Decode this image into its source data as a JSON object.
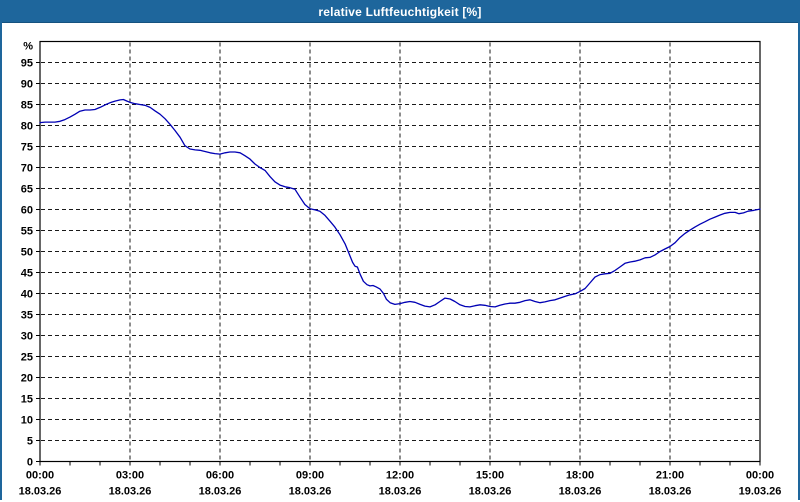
{
  "window": {
    "title": "relative Luftfeuchtigkeit [%]"
  },
  "colors": {
    "titlebar_bg": "#1e669c",
    "titlebar_text": "#ffffff",
    "frame": "#1e669c",
    "background": "#ffffff",
    "line": "#0000b4",
    "grid": "#1a1a1a",
    "axis": "#000000",
    "text": "#000000"
  },
  "chart_data": {
    "type": "line",
    "title": "relative Luftfeuchtigkeit [%]",
    "y_unit_label": "%",
    "ylim": [
      0,
      100
    ],
    "ytick_step": 5,
    "ytick_label_min": 0,
    "ytick_label_max": 95,
    "grid": "dashed; horizontal every 5%, vertical every 3h",
    "legend_position": "none",
    "x_hours_range": [
      0,
      24
    ],
    "x_minor_tick_hours": 1,
    "x_major_tick_hours": 3,
    "xticks": [
      {
        "hour": 0,
        "time": "00:00",
        "date": "18.03.26"
      },
      {
        "hour": 3,
        "time": "03:00",
        "date": "18.03.26"
      },
      {
        "hour": 6,
        "time": "06:00",
        "date": "18.03.26"
      },
      {
        "hour": 9,
        "time": "09:00",
        "date": "18.03.26"
      },
      {
        "hour": 12,
        "time": "12:00",
        "date": "18.03.26"
      },
      {
        "hour": 15,
        "time": "15:00",
        "date": "18.03.26"
      },
      {
        "hour": 18,
        "time": "18:00",
        "date": "18.03.26"
      },
      {
        "hour": 21,
        "time": "21:00",
        "date": "18.03.26"
      },
      {
        "hour": 24,
        "time": "00:00",
        "date": "19.03.26"
      }
    ],
    "series": [
      {
        "name": "relative Luftfeuchtigkeit [%]",
        "color": "#0000b4",
        "points": [
          [
            0,
            80.7
          ],
          [
            0.17,
            80.8
          ],
          [
            0.33,
            80.8
          ],
          [
            0.5,
            80.8
          ],
          [
            0.67,
            81.0
          ],
          [
            0.83,
            81.4
          ],
          [
            1,
            82.0
          ],
          [
            1.17,
            82.7
          ],
          [
            1.33,
            83.4
          ],
          [
            1.5,
            83.7
          ],
          [
            1.67,
            83.7
          ],
          [
            1.83,
            83.8
          ],
          [
            2,
            84.3
          ],
          [
            2.17,
            84.9
          ],
          [
            2.33,
            85.4
          ],
          [
            2.5,
            85.8
          ],
          [
            2.67,
            86.1
          ],
          [
            2.78,
            86.2
          ],
          [
            2.9,
            85.8
          ],
          [
            3,
            85.5
          ],
          [
            3.17,
            85.2
          ],
          [
            3.33,
            85.0
          ],
          [
            3.5,
            84.8
          ],
          [
            3.67,
            84.3
          ],
          [
            3.83,
            83.5
          ],
          [
            4,
            82.7
          ],
          [
            4.17,
            81.6
          ],
          [
            4.33,
            80.3
          ],
          [
            4.5,
            78.8
          ],
          [
            4.67,
            77.2
          ],
          [
            4.83,
            75.2
          ],
          [
            5,
            74.4
          ],
          [
            5.17,
            74.2
          ],
          [
            5.33,
            74.1
          ],
          [
            5.5,
            73.8
          ],
          [
            5.67,
            73.5
          ],
          [
            5.83,
            73.3
          ],
          [
            6,
            73.2
          ],
          [
            6.17,
            73.5
          ],
          [
            6.33,
            73.7
          ],
          [
            6.5,
            73.7
          ],
          [
            6.67,
            73.5
          ],
          [
            6.83,
            72.8
          ],
          [
            7,
            72.0
          ],
          [
            7.17,
            70.8
          ],
          [
            7.33,
            70.0
          ],
          [
            7.5,
            69.3
          ],
          [
            7.67,
            67.8
          ],
          [
            7.83,
            66.6
          ],
          [
            8,
            65.8
          ],
          [
            8.17,
            65.4
          ],
          [
            8.33,
            65.2
          ],
          [
            8.5,
            64.8
          ],
          [
            8.67,
            62.9
          ],
          [
            8.83,
            61.2
          ],
          [
            9,
            60.2
          ],
          [
            9.17,
            59.9
          ],
          [
            9.33,
            59.6
          ],
          [
            9.5,
            58.6
          ],
          [
            9.67,
            57.2
          ],
          [
            9.83,
            55.8
          ],
          [
            10,
            54.0
          ],
          [
            10.17,
            51.8
          ],
          [
            10.33,
            49.0
          ],
          [
            10.42,
            47.4
          ],
          [
            10.5,
            46.5
          ],
          [
            10.58,
            46.3
          ],
          [
            10.67,
            44.6
          ],
          [
            10.78,
            42.9
          ],
          [
            10.9,
            42.1
          ],
          [
            11,
            41.8
          ],
          [
            11.1,
            41.9
          ],
          [
            11.2,
            41.6
          ],
          [
            11.33,
            41.1
          ],
          [
            11.45,
            40.0
          ],
          [
            11.55,
            38.6
          ],
          [
            11.67,
            37.8
          ],
          [
            11.83,
            37.4
          ],
          [
            12,
            37.6
          ],
          [
            12.17,
            37.9
          ],
          [
            12.33,
            38.1
          ],
          [
            12.5,
            37.9
          ],
          [
            12.67,
            37.4
          ],
          [
            12.83,
            37.0
          ],
          [
            13,
            36.8
          ],
          [
            13.17,
            37.3
          ],
          [
            13.33,
            38.1
          ],
          [
            13.5,
            38.9
          ],
          [
            13.67,
            38.7
          ],
          [
            13.83,
            38.1
          ],
          [
            14,
            37.3
          ],
          [
            14.17,
            36.9
          ],
          [
            14.33,
            36.8
          ],
          [
            14.5,
            37.1
          ],
          [
            14.67,
            37.3
          ],
          [
            14.83,
            37.2
          ],
          [
            15,
            36.9
          ],
          [
            15.17,
            36.8
          ],
          [
            15.33,
            37.2
          ],
          [
            15.5,
            37.5
          ],
          [
            15.67,
            37.7
          ],
          [
            15.83,
            37.7
          ],
          [
            16,
            37.9
          ],
          [
            16.17,
            38.3
          ],
          [
            16.33,
            38.5
          ],
          [
            16.5,
            38.1
          ],
          [
            16.67,
            37.8
          ],
          [
            16.83,
            38.0
          ],
          [
            17,
            38.3
          ],
          [
            17.17,
            38.5
          ],
          [
            17.33,
            38.9
          ],
          [
            17.5,
            39.3
          ],
          [
            17.67,
            39.7
          ],
          [
            17.83,
            39.9
          ],
          [
            18,
            40.5
          ],
          [
            18.17,
            41.2
          ],
          [
            18.33,
            42.5
          ],
          [
            18.5,
            43.9
          ],
          [
            18.67,
            44.5
          ],
          [
            18.83,
            44.7
          ],
          [
            19,
            44.8
          ],
          [
            19.17,
            45.5
          ],
          [
            19.33,
            46.3
          ],
          [
            19.5,
            47.2
          ],
          [
            19.67,
            47.5
          ],
          [
            19.83,
            47.7
          ],
          [
            20,
            48.0
          ],
          [
            20.17,
            48.5
          ],
          [
            20.33,
            48.6
          ],
          [
            20.5,
            49.2
          ],
          [
            20.67,
            50.0
          ],
          [
            20.83,
            50.6
          ],
          [
            21,
            51.2
          ],
          [
            21.17,
            52.1
          ],
          [
            21.33,
            53.3
          ],
          [
            21.5,
            54.3
          ],
          [
            21.67,
            55.1
          ],
          [
            21.83,
            55.8
          ],
          [
            22,
            56.5
          ],
          [
            22.17,
            57.1
          ],
          [
            22.33,
            57.7
          ],
          [
            22.5,
            58.2
          ],
          [
            22.67,
            58.7
          ],
          [
            22.83,
            59.1
          ],
          [
            23,
            59.3
          ],
          [
            23.17,
            59.3
          ],
          [
            23.3,
            59.0
          ],
          [
            23.45,
            59.2
          ],
          [
            23.6,
            59.6
          ],
          [
            23.8,
            59.8
          ],
          [
            24,
            60.1
          ]
        ]
      }
    ]
  }
}
